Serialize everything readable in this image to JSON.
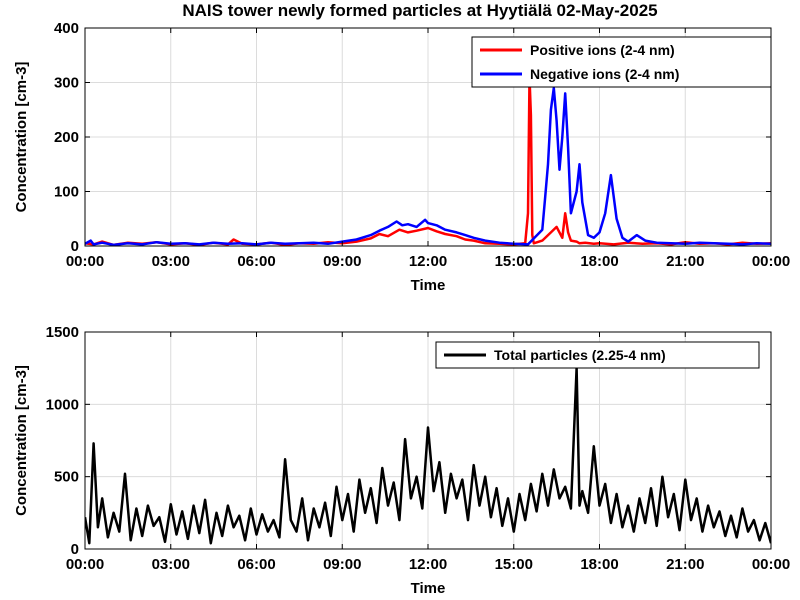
{
  "title": "NAIS tower newly formed particles at Hyytiälä 02-May-2025",
  "chart_data": [
    {
      "type": "line",
      "title": "NAIS tower newly formed particles at Hyytiälä 02-May-2025",
      "xlabel": "Time",
      "ylabel": "Concentration [cm-3]",
      "ylim": [
        0,
        400
      ],
      "xlim": [
        0,
        24
      ],
      "xtick_values": [
        0,
        3,
        6,
        9,
        12,
        15,
        18,
        21,
        24
      ],
      "xtick_labels": [
        "00:00",
        "03:00",
        "06:00",
        "09:00",
        "12:00",
        "15:00",
        "18:00",
        "21:00",
        "00:00"
      ],
      "ytick_values": [
        0,
        100,
        200,
        300,
        400
      ],
      "ytick_labels": [
        "0",
        "100",
        "200",
        "300",
        "400"
      ],
      "grid": true,
      "legend_position": "top-right",
      "series": [
        {
          "name": "Positive ions (2-4 nm)",
          "color": "#ff0000",
          "x": [
            0,
            0.3,
            0.6,
            1.0,
            1.5,
            2.0,
            2.5,
            3.0,
            3.5,
            4.0,
            4.5,
            5.0,
            5.2,
            5.5,
            6.0,
            6.5,
            7.0,
            7.5,
            8.0,
            8.5,
            9.0,
            9.5,
            10.0,
            10.3,
            10.6,
            11.0,
            11.3,
            11.6,
            12.0,
            12.3,
            12.6,
            13.0,
            13.3,
            13.6,
            14.0,
            14.5,
            15.0,
            15.4,
            15.5,
            15.55,
            15.6,
            15.65,
            15.7,
            16.0,
            16.3,
            16.5,
            16.7,
            16.8,
            16.9,
            17.0,
            17.2,
            17.3,
            17.5,
            17.8,
            18.0,
            18.5,
            19.0,
            19.5,
            20.0,
            20.5,
            21.0,
            21.5,
            22.0,
            22.5,
            23.0,
            23.5,
            24.0
          ],
          "y": [
            5,
            3,
            8,
            2,
            6,
            4,
            7,
            3,
            5,
            2,
            6,
            3,
            12,
            4,
            3,
            6,
            2,
            5,
            4,
            7,
            5,
            8,
            14,
            22,
            18,
            30,
            25,
            28,
            33,
            27,
            22,
            18,
            12,
            10,
            5,
            4,
            3,
            5,
            60,
            310,
            240,
            20,
            5,
            10,
            25,
            35,
            15,
            60,
            25,
            10,
            8,
            5,
            6,
            4,
            5,
            3,
            6,
            4,
            5,
            3,
            7,
            4,
            5,
            3,
            6,
            4,
            5
          ]
        },
        {
          "name": "Negative ions (2-4 nm)",
          "color": "#0000ff",
          "x": [
            0,
            0.2,
            0.3,
            0.6,
            1.0,
            1.5,
            2.0,
            2.5,
            3.0,
            3.5,
            4.0,
            4.5,
            5.0,
            5.5,
            6.0,
            6.5,
            7.0,
            7.5,
            8.0,
            8.5,
            9.0,
            9.5,
            10.0,
            10.3,
            10.6,
            10.9,
            11.1,
            11.3,
            11.6,
            11.9,
            12.0,
            12.3,
            12.6,
            13.0,
            13.3,
            13.6,
            14.0,
            14.5,
            15.0,
            15.5,
            16.0,
            16.1,
            16.2,
            16.3,
            16.4,
            16.5,
            16.6,
            16.7,
            16.8,
            16.9,
            17.0,
            17.2,
            17.3,
            17.4,
            17.6,
            17.8,
            18.0,
            18.2,
            18.4,
            18.6,
            18.8,
            19.0,
            19.3,
            19.6,
            20.0,
            20.5,
            21.0,
            21.5,
            22.0,
            22.5,
            23.0,
            23.5,
            24.0
          ],
          "y": [
            4,
            10,
            3,
            6,
            2,
            5,
            3,
            7,
            4,
            5,
            3,
            6,
            4,
            5,
            3,
            6,
            4,
            5,
            6,
            4,
            8,
            12,
            20,
            28,
            35,
            45,
            38,
            40,
            35,
            48,
            42,
            38,
            30,
            25,
            20,
            15,
            10,
            6,
            4,
            3,
            30,
            90,
            150,
            250,
            290,
            230,
            140,
            200,
            280,
            180,
            60,
            100,
            150,
            80,
            20,
            15,
            25,
            60,
            130,
            50,
            15,
            8,
            20,
            10,
            6,
            5,
            4,
            6,
            5,
            4,
            3,
            5,
            4
          ]
        }
      ]
    },
    {
      "type": "line",
      "title": "",
      "xlabel": "Time",
      "ylabel": "Concentration [cm-3]",
      "ylim": [
        0,
        1500
      ],
      "xlim": [
        0,
        24
      ],
      "xtick_values": [
        0,
        3,
        6,
        9,
        12,
        15,
        18,
        21,
        24
      ],
      "xtick_labels": [
        "00:00",
        "03:00",
        "06:00",
        "09:00",
        "12:00",
        "15:00",
        "18:00",
        "21:00",
        "00:00"
      ],
      "ytick_values": [
        0,
        500,
        1000,
        1500
      ],
      "ytick_labels": [
        "0",
        "500",
        "1000",
        "1500"
      ],
      "grid": true,
      "legend_position": "top-right",
      "series": [
        {
          "name": "Total particles (2.25-4 nm)",
          "color": "#000000",
          "x": [
            0,
            0.15,
            0.3,
            0.45,
            0.6,
            0.8,
            1.0,
            1.2,
            1.4,
            1.6,
            1.8,
            2.0,
            2.2,
            2.4,
            2.6,
            2.8,
            3.0,
            3.2,
            3.4,
            3.6,
            3.8,
            4.0,
            4.2,
            4.4,
            4.6,
            4.8,
            5.0,
            5.2,
            5.4,
            5.6,
            5.8,
            6.0,
            6.2,
            6.4,
            6.6,
            6.8,
            7.0,
            7.2,
            7.4,
            7.6,
            7.8,
            8.0,
            8.2,
            8.4,
            8.6,
            8.8,
            9.0,
            9.2,
            9.4,
            9.6,
            9.8,
            10.0,
            10.2,
            10.4,
            10.6,
            10.8,
            11.0,
            11.2,
            11.4,
            11.6,
            11.8,
            12.0,
            12.2,
            12.4,
            12.6,
            12.8,
            13.0,
            13.2,
            13.4,
            13.6,
            13.8,
            14.0,
            14.2,
            14.4,
            14.6,
            14.8,
            15.0,
            15.2,
            15.4,
            15.6,
            15.8,
            16.0,
            16.2,
            16.4,
            16.6,
            16.8,
            17.0,
            17.2,
            17.3,
            17.4,
            17.6,
            17.8,
            18.0,
            18.2,
            18.4,
            18.6,
            18.8,
            19.0,
            19.2,
            19.4,
            19.6,
            19.8,
            20.0,
            20.2,
            20.4,
            20.6,
            20.8,
            21.0,
            21.2,
            21.4,
            21.6,
            21.8,
            22.0,
            22.2,
            22.4,
            22.6,
            22.8,
            23.0,
            23.2,
            23.4,
            23.6,
            23.8,
            24.0
          ],
          "y": [
            220,
            40,
            730,
            150,
            350,
            80,
            250,
            120,
            520,
            60,
            280,
            90,
            300,
            160,
            220,
            50,
            310,
            100,
            260,
            70,
            300,
            110,
            340,
            40,
            250,
            90,
            300,
            150,
            230,
            60,
            280,
            100,
            240,
            120,
            200,
            80,
            620,
            200,
            120,
            350,
            60,
            280,
            150,
            320,
            90,
            430,
            200,
            380,
            120,
            480,
            250,
            420,
            180,
            560,
            300,
            460,
            200,
            760,
            350,
            500,
            280,
            840,
            400,
            600,
            250,
            520,
            350,
            480,
            200,
            580,
            300,
            500,
            220,
            420,
            160,
            350,
            120,
            380,
            200,
            450,
            260,
            520,
            300,
            550,
            350,
            430,
            280,
            1250,
            300,
            400,
            250,
            710,
            300,
            450,
            180,
            380,
            150,
            300,
            120,
            350,
            180,
            420,
            160,
            500,
            220,
            380,
            130,
            480,
            200,
            350,
            120,
            300,
            150,
            260,
            90,
            230,
            80,
            280,
            120,
            200,
            60,
            180,
            40
          ]
        }
      ]
    }
  ]
}
